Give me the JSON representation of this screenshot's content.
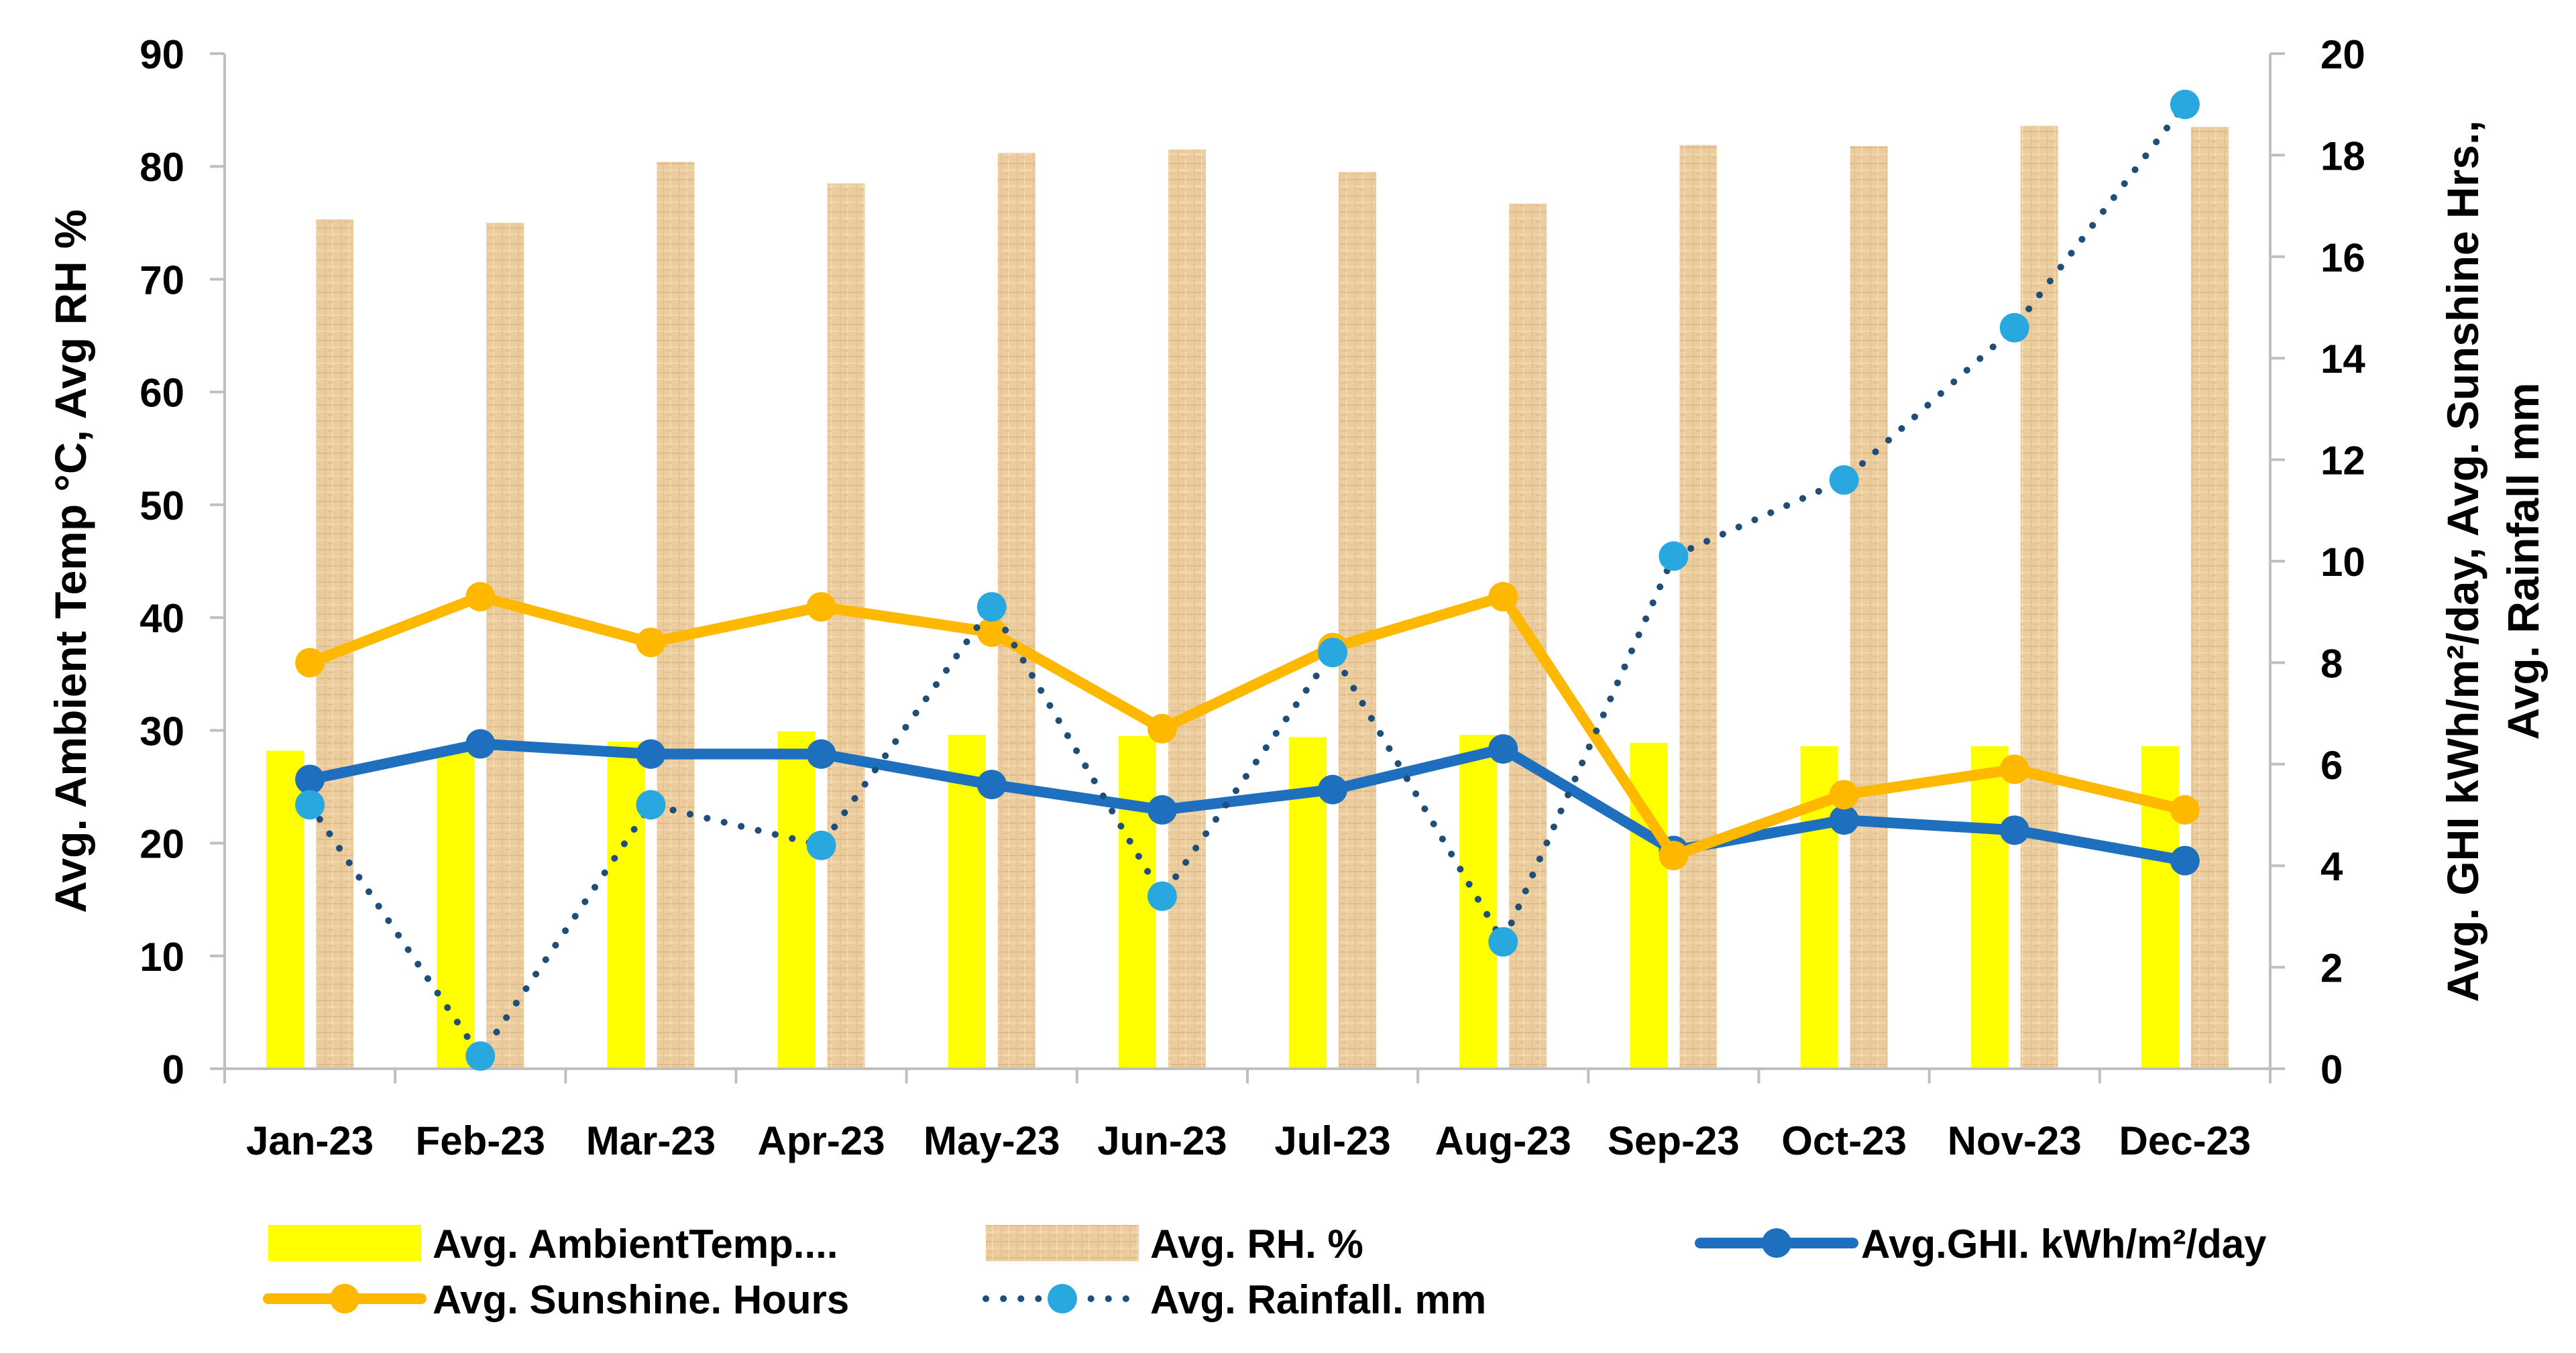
{
  "chart_data": {
    "type": "bar",
    "title": "",
    "categories": [
      "Jan-23",
      "Feb-23",
      "Mar-23",
      "Apr-23",
      "May-23",
      "Jun-23",
      "Jul-23",
      "Aug-23",
      "Sep-23",
      "Oct-23",
      "Nov-23",
      "Dec-23"
    ],
    "ylabel_left": "Avg. Ambient Temp °C, Avg RH %",
    "ylabel_right": [
      "Avg. GHI kWh/m²/day, Avg. Sunshine Hrs.,",
      "Avg. Rainfall mm"
    ],
    "ylim_left": [
      0,
      90
    ],
    "yticks_left": [
      0,
      10,
      20,
      30,
      40,
      50,
      60,
      70,
      80,
      90
    ],
    "ylim_right": [
      0,
      20
    ],
    "yticks_right": [
      0,
      2,
      4,
      6,
      8,
      10,
      12,
      14,
      16,
      18,
      20
    ],
    "grid": false,
    "legend_position": "bottom",
    "series": [
      {
        "name": "Avg. AmbientTemp....",
        "type": "bar",
        "axis": "left",
        "color": "#FFFF00",
        "values": [
          28.2,
          28.5,
          29.0,
          29.9,
          29.6,
          29.5,
          29.4,
          29.6,
          28.9,
          28.6,
          28.6,
          28.6
        ]
      },
      {
        "name": "Avg. RH. %",
        "type": "bar",
        "axis": "left",
        "color": "#E8C89A",
        "values": [
          75.3,
          75.0,
          80.4,
          78.5,
          81.2,
          81.5,
          79.5,
          76.7,
          81.9,
          81.8,
          83.6,
          83.5
        ]
      },
      {
        "name": "Avg.GHI. kWh/m²/day",
        "type": "line",
        "axis": "right",
        "color": "#1F6FBF",
        "values": [
          5.7,
          6.4,
          6.2,
          6.2,
          5.6,
          5.1,
          5.5,
          6.3,
          4.3,
          4.9,
          4.7,
          4.1
        ]
      },
      {
        "name": "Avg. Sunshine. Hours",
        "type": "line",
        "axis": "right",
        "color": "#FFB800",
        "values": [
          8.0,
          9.3,
          8.4,
          9.1,
          8.6,
          6.7,
          8.3,
          9.3,
          4.2,
          5.4,
          5.9,
          5.1
        ]
      },
      {
        "name": "Avg. Rainfall. mm",
        "type": "line-dotted",
        "axis": "right",
        "color": "#1F4E79",
        "marker_color": "#29A8E0",
        "values": [
          5.2,
          0.25,
          5.2,
          4.4,
          9.1,
          3.4,
          8.2,
          2.5,
          10.1,
          11.6,
          14.6,
          19.0
        ]
      }
    ]
  }
}
